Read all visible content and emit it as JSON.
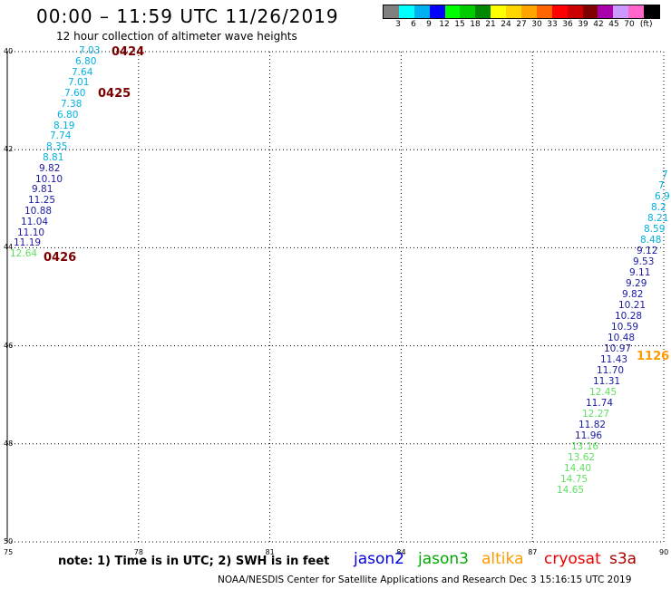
{
  "header": {
    "title": "00:00 – 11:59 UTC 11/26/2019",
    "subtitle": "12 hour collection of altimeter wave heights"
  },
  "legend": {
    "colors": [
      "#808080",
      "#00ffff",
      "#00b0f0",
      "#0000ff",
      "#00ff00",
      "#00cc00",
      "#008800",
      "#ffff00",
      "#ffd700",
      "#ffa500",
      "#ff6600",
      "#ff0000",
      "#cc0000",
      "#800000",
      "#aa00aa",
      "#cc99ff",
      "#ff66cc",
      "#000000"
    ],
    "labels": [
      "3",
      "6",
      "9",
      "12",
      "15",
      "18",
      "21",
      "24",
      "27",
      "30",
      "33",
      "36",
      "39",
      "42",
      "45",
      "70",
      "(ft)"
    ]
  },
  "axes": {
    "lon_ticks": [
      "75",
      "78",
      "81",
      "84",
      "87",
      "90"
    ],
    "lat_ticks": [
      "40",
      "42",
      "44",
      "46",
      "48",
      "50"
    ]
  },
  "colors": {
    "cyan": "#00b0e0",
    "navy": "#1a1aa0",
    "green": "#60e060",
    "orange": "#ff9900",
    "maroon": "#7a0000"
  },
  "track1": {
    "values": [
      {
        "v": "7.03",
        "c": "cyan"
      },
      {
        "v": "6.80",
        "c": "cyan"
      },
      {
        "v": "7.64",
        "c": "cyan"
      },
      {
        "v": "7.01",
        "c": "cyan"
      },
      {
        "v": "7.60",
        "c": "cyan"
      },
      {
        "v": "7.38",
        "c": "cyan"
      },
      {
        "v": "6.80",
        "c": "cyan"
      },
      {
        "v": "8.19",
        "c": "cyan"
      },
      {
        "v": "7.74",
        "c": "cyan"
      },
      {
        "v": "8.35",
        "c": "cyan"
      },
      {
        "v": "8.81",
        "c": "cyan"
      },
      {
        "v": "9.82",
        "c": "navy"
      },
      {
        "v": "10.10",
        "c": "navy"
      },
      {
        "v": "9.81",
        "c": "navy"
      },
      {
        "v": "11.25",
        "c": "navy"
      },
      {
        "v": "10.88",
        "c": "navy"
      },
      {
        "v": "11.04",
        "c": "navy"
      },
      {
        "v": "11.10",
        "c": "navy"
      },
      {
        "v": "11.19",
        "c": "navy"
      },
      {
        "v": "12.64",
        "c": "green"
      }
    ],
    "times": [
      "0424",
      "0425",
      "0426"
    ]
  },
  "track2": {
    "values": [
      {
        "v": "7",
        "c": "cyan"
      },
      {
        "v": "7",
        "c": "cyan"
      },
      {
        "v": "6.9",
        "c": "cyan"
      },
      {
        "v": "8.2",
        "c": "cyan"
      },
      {
        "v": "8.21",
        "c": "cyan"
      },
      {
        "v": "8.59",
        "c": "cyan"
      },
      {
        "v": "8.48",
        "c": "cyan"
      },
      {
        "v": "9.12",
        "c": "navy"
      },
      {
        "v": "9.53",
        "c": "navy"
      },
      {
        "v": "9.11",
        "c": "navy"
      },
      {
        "v": "9.29",
        "c": "navy"
      },
      {
        "v": "9.82",
        "c": "navy"
      },
      {
        "v": "10.21",
        "c": "navy"
      },
      {
        "v": "10.28",
        "c": "navy"
      },
      {
        "v": "10.59",
        "c": "navy"
      },
      {
        "v": "10.48",
        "c": "navy"
      },
      {
        "v": "10.97",
        "c": "navy"
      },
      {
        "v": "11.43",
        "c": "navy"
      },
      {
        "v": "11.70",
        "c": "navy"
      },
      {
        "v": "11.31",
        "c": "navy"
      },
      {
        "v": "12.45",
        "c": "green"
      },
      {
        "v": "11.74",
        "c": "navy"
      },
      {
        "v": "12.27",
        "c": "green"
      },
      {
        "v": "11.82",
        "c": "navy"
      },
      {
        "v": "11.96",
        "c": "navy"
      },
      {
        "v": "13.16",
        "c": "green"
      },
      {
        "v": "13.62",
        "c": "green"
      },
      {
        "v": "14.40",
        "c": "green"
      },
      {
        "v": "14.75",
        "c": "green"
      },
      {
        "v": "14.65",
        "c": "green"
      }
    ],
    "time": "1126"
  },
  "footer": {
    "note": "note: 1) Time is in UTC; 2) SWH is in feet",
    "satellites": [
      {
        "name": "jason2",
        "color": "#0000dd"
      },
      {
        "name": "jason3",
        "color": "#00aa00"
      },
      {
        "name": "altika",
        "color": "#ff9900"
      },
      {
        "name": "cryosat",
        "color": "#ee0000"
      },
      {
        "name": "s3a",
        "color": "#aa0000"
      }
    ],
    "credit": "NOAA/NESDIS Center for Satellite Applications and Research    Dec  3 15:16:15 UTC 2019"
  }
}
